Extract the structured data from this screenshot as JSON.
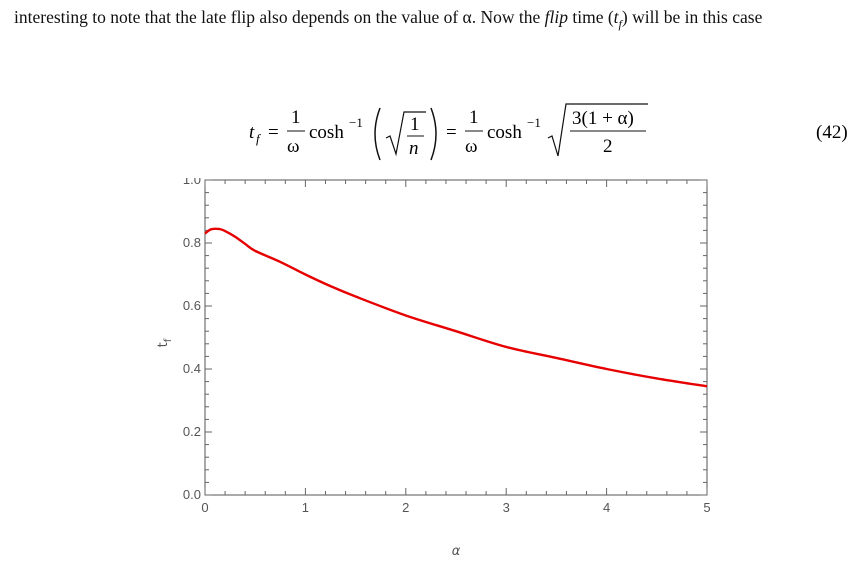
{
  "paragraph": {
    "text_before": "interesting to note that the late flip also depends on the value of α. Now the ",
    "flip_word": "flip",
    "text_middle": " time (",
    "t_var": "t",
    "t_sub": "f",
    "text_after": ") will be in this case"
  },
  "equation": {
    "lhs": "t",
    "lhs_sub": "f",
    "eq_sign": "=",
    "num_one": "1",
    "omega": "ω",
    "cosh": "cosh",
    "inv": "−1",
    "inner_one": "1",
    "inner_n": "n",
    "rhs_numerator": "3(1 + α)",
    "rhs_denominator": "2",
    "number": "(42)"
  },
  "chart_data": {
    "type": "line",
    "title": "",
    "xlabel": "α",
    "ylabel": "t",
    "ylabel_sub": "f",
    "xlim": [
      0,
      5
    ],
    "ylim": [
      0,
      1
    ],
    "x_ticks": [
      0,
      1,
      2,
      3,
      4,
      5
    ],
    "y_ticks": [
      "0.0",
      "0.2",
      "0.4",
      "0.6",
      "0.8",
      "1.0"
    ],
    "x_tick_labels": [
      "0",
      "1",
      "2",
      "3",
      "4",
      "5"
    ],
    "line_color": "#e60000",
    "series": [
      {
        "x": [
          0,
          0.05,
          0.1,
          0.15,
          0.2,
          0.3,
          0.4,
          0.5,
          0.75,
          1.0,
          1.25,
          1.5,
          2.0,
          2.5,
          3.0,
          3.5,
          4.0,
          4.5,
          5.0
        ],
        "values": [
          0.83,
          0.842,
          0.845,
          0.844,
          0.838,
          0.82,
          0.797,
          0.775,
          0.74,
          0.7,
          0.663,
          0.63,
          0.57,
          0.52,
          0.47,
          0.435,
          0.4,
          0.37,
          0.345
        ]
      }
    ]
  }
}
